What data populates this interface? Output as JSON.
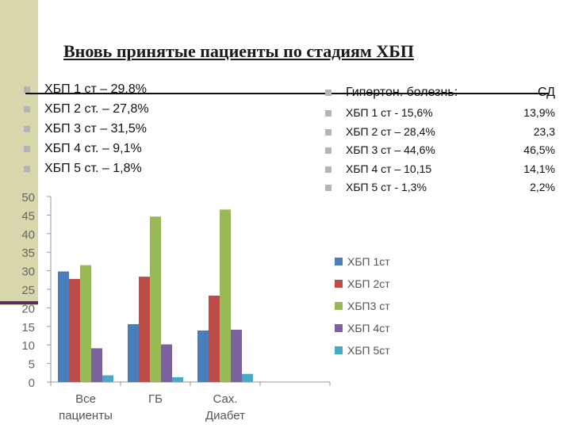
{
  "slide": {
    "title": "Вновь принятые пациенты по стадиям ХБП",
    "left_list": [
      "ХБП 1 ст – 29,8%",
      "ХБП 2 ст. – 27,8%",
      "ХБП 3 ст – 31,5%",
      "ХБП 4 ст. – 9,1%",
      "ХБП 5 ст. – 1,8%"
    ],
    "right_list": {
      "header": {
        "label": "Гипертон. болезнь:",
        "value": "СД"
      },
      "items": [
        {
          "label": "ХБП 1 ст  - 15,6%",
          "value": "13,9%"
        },
        {
          "label": "ХБП 2 ст – 28,4%",
          "value": "23,3"
        },
        {
          "label": "ХБП 3 ст – 44,6%",
          "value": "46,5%"
        },
        {
          "label": "ХБП 4 ст – 10,15",
          "value": "14,1%"
        },
        {
          "label": "ХБП 5 ст  - 1,3%",
          "value": "2,2%"
        }
      ]
    },
    "colors": {
      "left_band": "#d8d7ac",
      "accent_line": "#5a2e5a",
      "bullet": "#b5b5b5"
    }
  },
  "chart_data": {
    "type": "bar",
    "categories": [
      [
        "Все",
        "пациенты"
      ],
      [
        "ГБ"
      ],
      [
        "Сах.",
        "Диабет"
      ]
    ],
    "series": [
      {
        "name": "ХБП 1ст",
        "color": "#4a7ebb",
        "values": [
          29.8,
          15.6,
          13.9
        ]
      },
      {
        "name": "ХБП 2ст",
        "color": "#be4b48",
        "values": [
          27.8,
          28.4,
          23.3
        ]
      },
      {
        "name": "ХБП3 ст",
        "color": "#98b954",
        "values": [
          31.5,
          44.6,
          46.5
        ]
      },
      {
        "name": "ХБП 4ст",
        "color": "#7d60a0",
        "values": [
          9.1,
          10.15,
          14.1
        ]
      },
      {
        "name": "ХБП 5ст",
        "color": "#46aac5",
        "values": [
          1.8,
          1.3,
          2.2
        ]
      }
    ],
    "yticks": [
      0,
      5,
      10,
      15,
      20,
      25,
      30,
      35,
      40,
      45,
      50
    ],
    "ylim": [
      0,
      50
    ],
    "legend": "right",
    "grid": false
  }
}
